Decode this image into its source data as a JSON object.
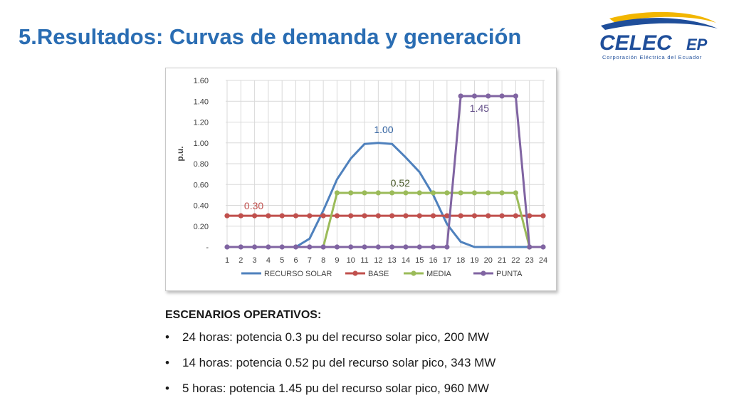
{
  "title": "5.Resultados: Curvas de demanda y generación",
  "logo": {
    "brand": "CELEC",
    "suffix": "EP",
    "tagline": "Corporación Eléctrica del Ecuador"
  },
  "chart_data": {
    "type": "line",
    "ylabel": "p.u.",
    "xlabel": "",
    "ylim": [
      0,
      1.6
    ],
    "y_ticks": [
      "-",
      "0.20",
      "0.40",
      "0.60",
      "0.80",
      "1.00",
      "1.20",
      "1.40",
      "1.60"
    ],
    "y_tick_values": [
      0,
      0.2,
      0.4,
      0.6,
      0.8,
      1.0,
      1.2,
      1.4,
      1.6
    ],
    "categories": [
      "1",
      "2",
      "3",
      "4",
      "5",
      "6",
      "7",
      "8",
      "9",
      "10",
      "11",
      "12",
      "13",
      "14",
      "15",
      "16",
      "17",
      "18",
      "19",
      "20",
      "21",
      "22",
      "23",
      "24"
    ],
    "grid": true,
    "legend_position": "bottom",
    "series": [
      {
        "name": "RECURSO SOLAR",
        "color": "#4f81bd",
        "markers": false,
        "values": [
          0,
          0,
          0,
          0,
          0,
          0,
          0.08,
          0.35,
          0.65,
          0.85,
          0.99,
          1.0,
          0.99,
          0.86,
          0.72,
          0.5,
          0.22,
          0.05,
          0,
          0,
          0,
          0,
          0,
          0
        ]
      },
      {
        "name": "BASE",
        "color": "#c0504d",
        "markers": true,
        "values": [
          0.3,
          0.3,
          0.3,
          0.3,
          0.3,
          0.3,
          0.3,
          0.3,
          0.3,
          0.3,
          0.3,
          0.3,
          0.3,
          0.3,
          0.3,
          0.3,
          0.3,
          0.3,
          0.3,
          0.3,
          0.3,
          0.3,
          0.3,
          0.3
        ]
      },
      {
        "name": "MEDIA",
        "color": "#9bbb59",
        "markers": true,
        "values": [
          null,
          null,
          null,
          null,
          null,
          null,
          null,
          0,
          0.52,
          0.52,
          0.52,
          0.52,
          0.52,
          0.52,
          0.52,
          0.52,
          0.52,
          0.52,
          0.52,
          0.52,
          0.52,
          0.52,
          0,
          null
        ]
      },
      {
        "name": "PUNTA",
        "color": "#8064a2",
        "markers": true,
        "values": [
          0,
          0,
          0,
          0,
          0,
          0,
          0,
          0,
          0,
          0,
          0,
          0,
          0,
          0,
          0,
          0,
          0,
          1.45,
          1.45,
          1.45,
          1.45,
          1.45,
          0,
          0
        ]
      }
    ],
    "annotations": [
      {
        "text": "1.00",
        "color": "#2e5f9e",
        "x": "12",
        "y": 1.0
      },
      {
        "text": "0.52",
        "color": "#4a5a2a",
        "x": "13",
        "y": 0.52
      },
      {
        "text": "0.30",
        "color": "#c0504d",
        "x": "4",
        "y": 0.3
      },
      {
        "text": "1.45",
        "color": "#5f4a85",
        "x": "20",
        "y": 1.45
      }
    ]
  },
  "scenarios": {
    "heading": "ESCENARIOS OPERATIVOS:",
    "bullet_symbol": "•",
    "items": [
      "24 horas: potencia 0.3 pu del recurso solar pico, 200 MW",
      "14 horas: potencia 0.52 pu del recurso solar pico, 343 MW",
      "5 horas: potencia 1.45 pu del recurso solar pico, 960 MW"
    ]
  }
}
